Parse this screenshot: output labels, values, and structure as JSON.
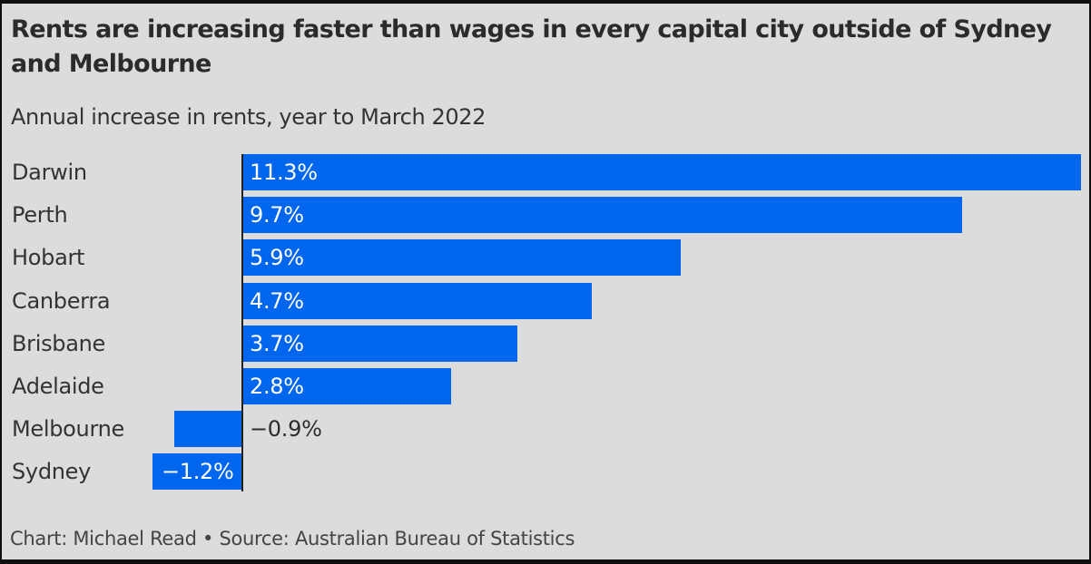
{
  "header": {
    "title": "Rents are increasing faster than wages in every capital city outside of Sydney and Melbourne",
    "subtitle": "Annual increase in rents, year to March 2022"
  },
  "footer": {
    "credit": "Chart: Michael Read • Source: Australian Bureau of Statistics"
  },
  "colors": {
    "bar": "#0066ee",
    "background": "#dcdcdc",
    "text": "#2b2b2b"
  },
  "rows": [
    {
      "label": "Darwin",
      "value": 11.3,
      "display": "11.3%"
    },
    {
      "label": "Perth",
      "value": 9.7,
      "display": "9.7%"
    },
    {
      "label": "Hobart",
      "value": 5.9,
      "display": "5.9%"
    },
    {
      "label": "Canberra",
      "value": 4.7,
      "display": "4.7%"
    },
    {
      "label": "Brisbane",
      "value": 3.7,
      "display": "3.7%"
    },
    {
      "label": "Adelaide",
      "value": 2.8,
      "display": "2.8%"
    },
    {
      "label": "Melbourne",
      "value": -0.9,
      "display": "−0.9%"
    },
    {
      "label": "Sydney",
      "value": -1.2,
      "display": "−1.2%"
    }
  ],
  "chart_data": {
    "type": "bar",
    "orientation": "horizontal",
    "title": "Rents are increasing faster than wages in every capital city outside of Sydney and Melbourne",
    "subtitle": "Annual increase in rents, year to March 2022",
    "categories": [
      "Darwin",
      "Perth",
      "Hobart",
      "Canberra",
      "Brisbane",
      "Adelaide",
      "Melbourne",
      "Sydney"
    ],
    "values": [
      11.3,
      9.7,
      5.9,
      4.7,
      3.7,
      2.8,
      -0.9,
      -1.2
    ],
    "data_labels": [
      "11.3%",
      "9.7%",
      "5.9%",
      "4.7%",
      "3.7%",
      "2.8%",
      "−0.9%",
      "−1.2%"
    ],
    "xlabel": "",
    "ylabel": "",
    "unit": "%",
    "xlim": [
      -1.2,
      11.3
    ],
    "grid": false,
    "legend": null,
    "source": "Chart: Michael Read • Source: Australian Bureau of Statistics"
  }
}
